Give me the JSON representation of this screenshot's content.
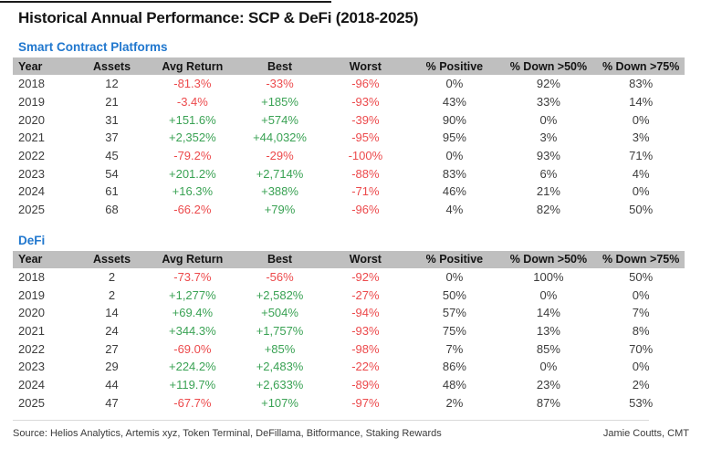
{
  "title": "Historical Annual Performance: SCP & DeFi (2018-2025)",
  "colors": {
    "section_blue": "#2077ce",
    "header_bg": "#bfbfbf",
    "negative_red": "#ec4a4c",
    "positive_green": "#3aa254"
  },
  "chart_data": [
    {
      "type": "table",
      "title": "Smart Contract Platforms",
      "columns": [
        "Year",
        "Assets",
        "Avg Return",
        "Best",
        "Worst",
        "% Positive",
        "% Down >50%",
        "% Down >75%"
      ],
      "rows": [
        [
          "2018",
          "12",
          "-81.3%",
          "-33%",
          "-96%",
          "0%",
          "92%",
          "83%"
        ],
        [
          "2019",
          "21",
          "-3.4%",
          "+185%",
          "-93%",
          "43%",
          "33%",
          "14%"
        ],
        [
          "2020",
          "31",
          "+151.6%",
          "+574%",
          "-39%",
          "90%",
          "0%",
          "0%"
        ],
        [
          "2021",
          "37",
          "+2,352%",
          "+44,032%",
          "-95%",
          "95%",
          "3%",
          "3%"
        ],
        [
          "2022",
          "45",
          "-79.2%",
          "-29%",
          "-100%",
          "0%",
          "93%",
          "71%"
        ],
        [
          "2023",
          "54",
          "+201.2%",
          "+2,714%",
          "-88%",
          "83%",
          "6%",
          "4%"
        ],
        [
          "2024",
          "61",
          "+16.3%",
          "+388%",
          "-71%",
          "46%",
          "21%",
          "0%"
        ],
        [
          "2025",
          "68",
          "-66.2%",
          "+79%",
          "-96%",
          "4%",
          "82%",
          "50%"
        ]
      ]
    },
    {
      "type": "table",
      "title": "DeFi",
      "columns": [
        "Year",
        "Assets",
        "Avg Return",
        "Best",
        "Worst",
        "% Positive",
        "% Down >50%",
        "% Down >75%"
      ],
      "rows": [
        [
          "2018",
          "2",
          "-73.7%",
          "-56%",
          "-92%",
          "0%",
          "100%",
          "50%"
        ],
        [
          "2019",
          "2",
          "+1,277%",
          "+2,582%",
          "-27%",
          "50%",
          "0%",
          "0%"
        ],
        [
          "2020",
          "14",
          "+69.4%",
          "+504%",
          "-94%",
          "57%",
          "14%",
          "7%"
        ],
        [
          "2021",
          "24",
          "+344.3%",
          "+1,757%",
          "-93%",
          "75%",
          "13%",
          "8%"
        ],
        [
          "2022",
          "27",
          "-69.0%",
          "+85%",
          "-98%",
          "7%",
          "85%",
          "70%"
        ],
        [
          "2023",
          "29",
          "+224.2%",
          "+2,483%",
          "-22%",
          "86%",
          "0%",
          "0%"
        ],
        [
          "2024",
          "44",
          "+119.7%",
          "+2,633%",
          "-89%",
          "48%",
          "23%",
          "2%"
        ],
        [
          "2025",
          "47",
          "-67.7%",
          "+107%",
          "-97%",
          "2%",
          "87%",
          "53%"
        ]
      ]
    }
  ],
  "footer": {
    "source": "Source: Helios Analytics, Artemis xyz, Token Terminal, DeFillama, Bitformance, Staking Rewards",
    "credit": "Jamie Coutts, CMT"
  }
}
